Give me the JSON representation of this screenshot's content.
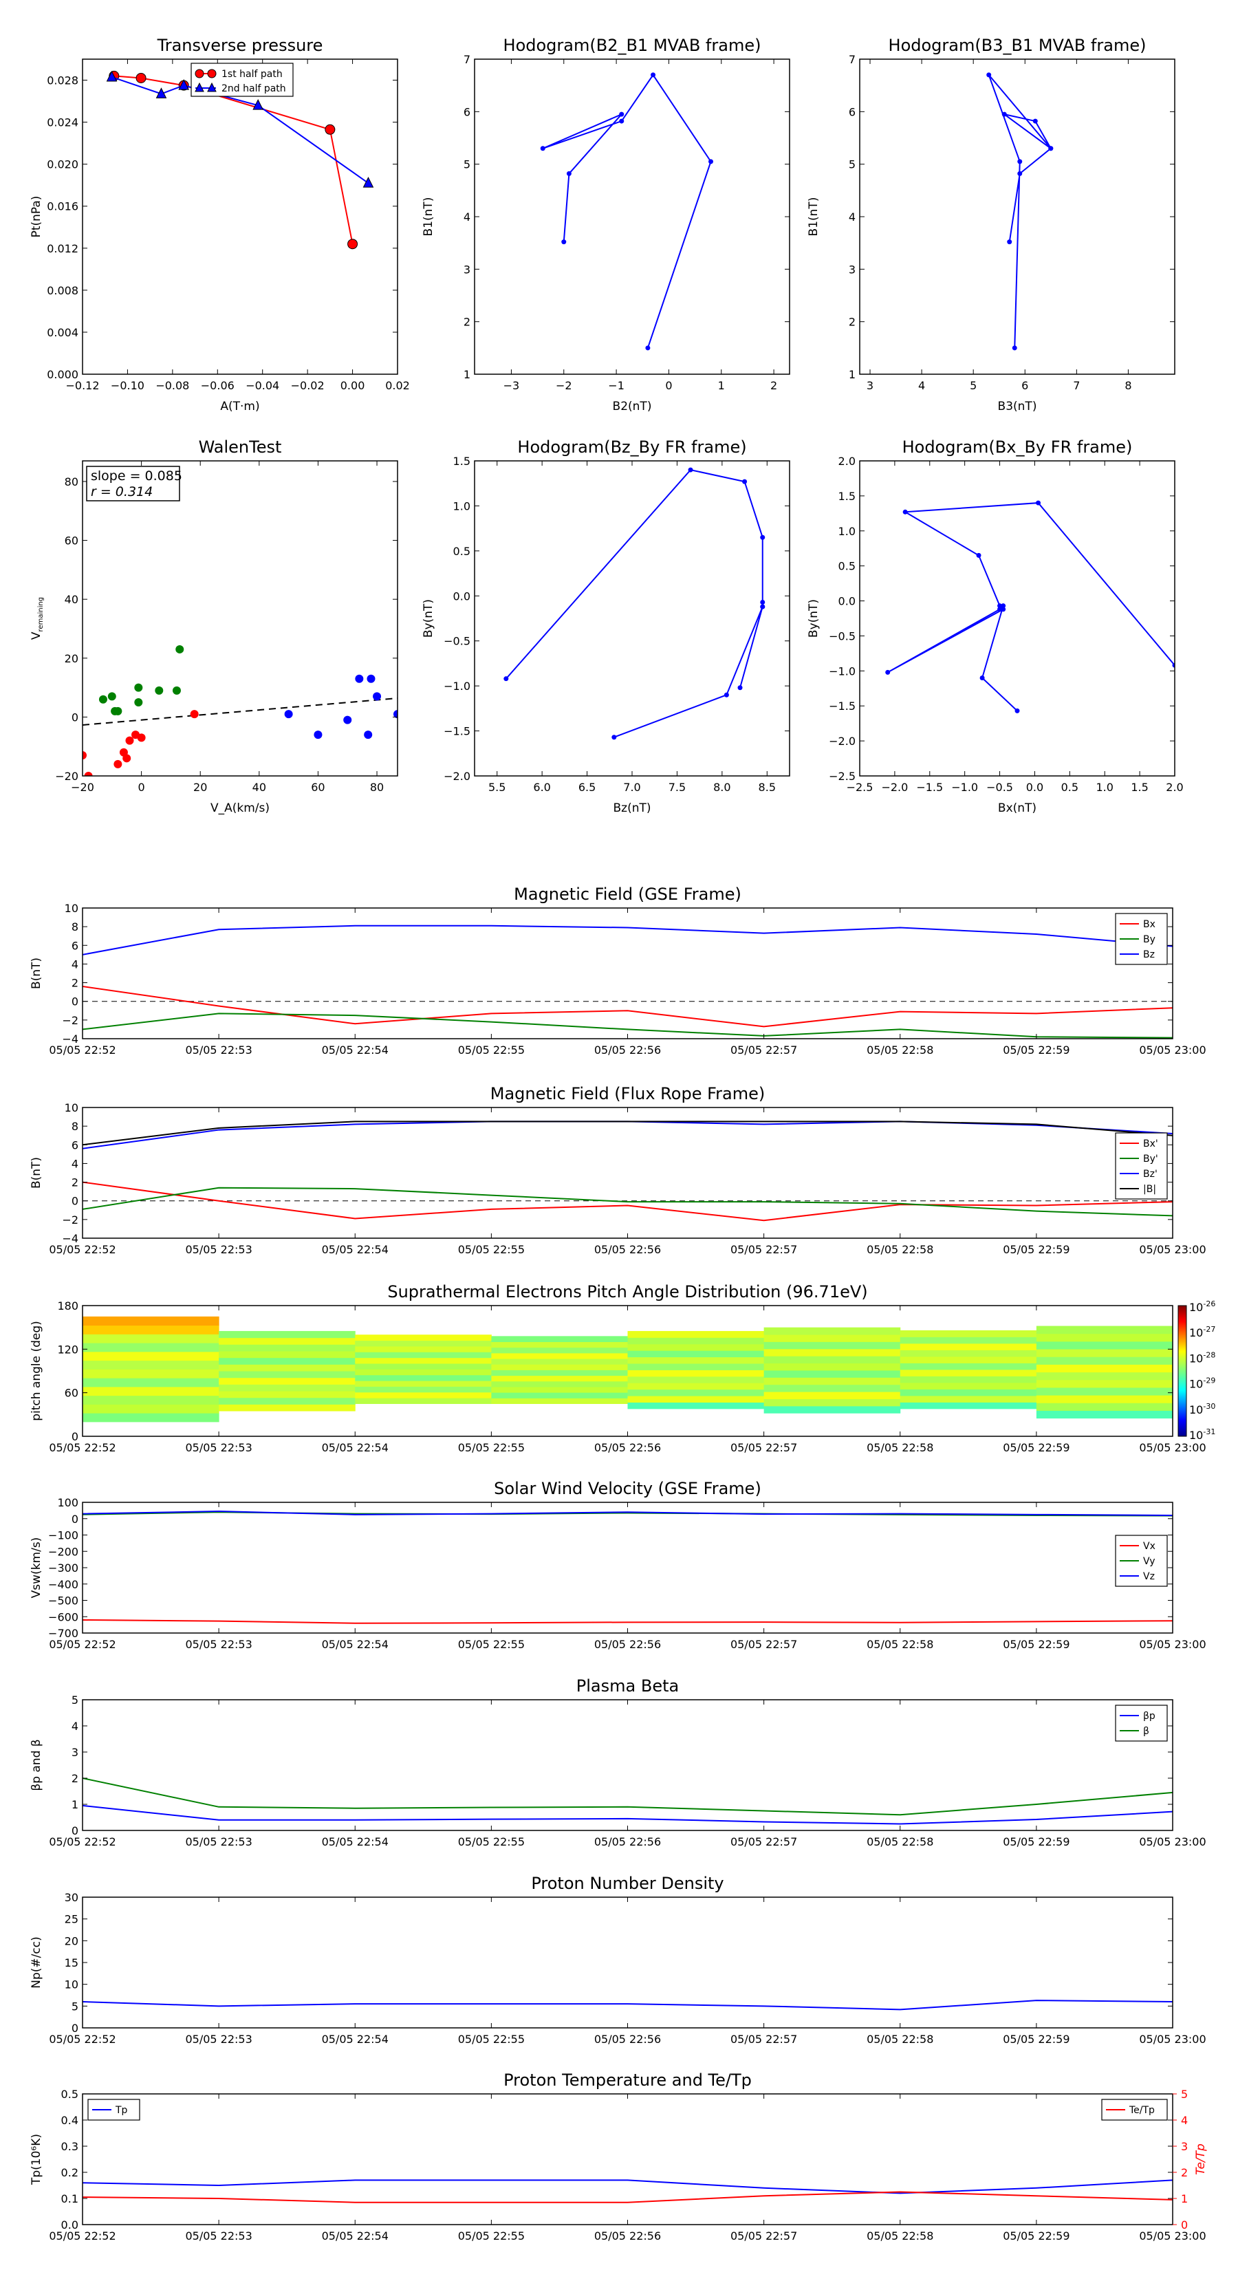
{
  "chart_data": [
    {
      "id": "transverse-pressure",
      "type": "line",
      "title": "Transverse pressure",
      "xlabel": "A(T·m)",
      "ylabel": "Pt(nPa)",
      "xlim": [
        -0.12,
        0.02
      ],
      "ylim": [
        0.0,
        0.03
      ],
      "xticks": [
        -0.12,
        -0.1,
        -0.08,
        -0.06,
        -0.04,
        -0.02,
        0.0,
        0.02
      ],
      "xtick_labels": [
        "−0.12",
        "−0.10",
        "−0.08",
        "−0.06",
        "−0.04",
        "−0.02",
        "0.00",
        "0.02"
      ],
      "yticks": [
        0.0,
        0.004,
        0.008,
        0.012,
        0.016,
        0.02,
        0.024,
        0.028
      ],
      "ytick_labels": [
        "0.000",
        "0.004",
        "0.008",
        "0.012",
        "0.016",
        "0.020",
        "0.024",
        "0.028"
      ],
      "legend": "top-center",
      "series": [
        {
          "name": "1st half path",
          "color": "#ff0000",
          "marker": "circle",
          "x": [
            -0.106,
            -0.094,
            -0.075,
            -0.01,
            0.0
          ],
          "y": [
            0.0284,
            0.0282,
            0.0275,
            0.0233,
            0.0124
          ]
        },
        {
          "name": "2nd half path",
          "color": "#0000ff",
          "marker": "triangle",
          "x": [
            -0.107,
            -0.085,
            -0.075,
            -0.042,
            0.007
          ],
          "y": [
            0.0283,
            0.0267,
            0.0275,
            0.0256,
            0.0182
          ]
        }
      ]
    },
    {
      "id": "hodogram-b2-b1",
      "type": "line",
      "title": "Hodogram(B2_B1 MVAB frame)",
      "xlabel": "B2(nT)",
      "ylabel": "B1(nT)",
      "xlim": [
        -3.7,
        2.3
      ],
      "ylim": [
        1,
        7
      ],
      "xticks": [
        -3,
        -2,
        -1,
        0,
        1,
        2
      ],
      "xtick_labels": [
        "−3",
        "−2",
        "−1",
        "0",
        "1",
        "2"
      ],
      "yticks": [
        1,
        2,
        3,
        4,
        5,
        6,
        7
      ],
      "ytick_labels": [
        "1",
        "2",
        "3",
        "4",
        "5",
        "6",
        "7"
      ],
      "series": [
        {
          "color": "#0000ff",
          "x": [
            -0.4,
            0.8,
            -0.3,
            -0.9,
            -2.4,
            -0.9,
            -1.9,
            -2.0
          ],
          "y": [
            1.5,
            5.05,
            6.7,
            5.82,
            5.3,
            5.95,
            4.82,
            3.52
          ]
        }
      ]
    },
    {
      "id": "hodogram-b3-b1",
      "type": "line",
      "title": "Hodogram(B3_B1 MVAB frame)",
      "xlabel": "B3(nT)",
      "ylabel": "B1(nT)",
      "xlim": [
        2.8,
        8.9
      ],
      "ylim": [
        1,
        7
      ],
      "xticks": [
        3,
        4,
        5,
        6,
        7,
        8
      ],
      "xtick_labels": [
        "3",
        "4",
        "5",
        "6",
        "7",
        "8"
      ],
      "yticks": [
        1,
        2,
        3,
        4,
        5,
        6,
        7
      ],
      "ytick_labels": [
        "1",
        "2",
        "3",
        "4",
        "5",
        "6",
        "7"
      ],
      "series": [
        {
          "color": "#0000ff",
          "x": [
            5.8,
            5.9,
            5.3,
            6.5,
            6.2,
            5.6,
            6.5,
            5.9,
            5.7
          ],
          "y": [
            1.5,
            5.05,
            6.7,
            5.3,
            5.82,
            5.95,
            5.3,
            4.82,
            3.52
          ]
        }
      ]
    },
    {
      "id": "walen-test",
      "type": "scatter",
      "title": "WalenTest",
      "xlabel": "V_A(km/s)",
      "ylabel": "V_remaining(km/s)",
      "xlim": [
        -20,
        87
      ],
      "ylim": [
        -20,
        87
      ],
      "xticks": [
        -20,
        0,
        20,
        40,
        60,
        80
      ],
      "xtick_labels": [
        "−20",
        "0",
        "20",
        "40",
        "60",
        "80"
      ],
      "yticks": [
        -20,
        0,
        20,
        40,
        60,
        80
      ],
      "ytick_labels": [
        "−20",
        "0",
        "20",
        "40",
        "60",
        "80"
      ],
      "annotation": [
        "slope = 0.085",
        "r = 0.314"
      ],
      "fit_line": {
        "slope": 0.085,
        "intercept": -1.0
      },
      "series": [
        {
          "color": "#ff0000",
          "x": [
            -20,
            -18,
            -8,
            -6,
            -5,
            -4,
            -2,
            0,
            18
          ],
          "y": [
            -13,
            -20,
            -16,
            -12,
            -14,
            -8,
            -6,
            -7,
            1
          ]
        },
        {
          "color": "#008000",
          "x": [
            -13,
            -10,
            -9,
            -8,
            -1,
            -1,
            6,
            12,
            13
          ],
          "y": [
            6,
            7,
            2,
            2,
            10,
            5,
            9,
            9,
            23
          ]
        },
        {
          "color": "#0000ff",
          "x": [
            50,
            60,
            70,
            74,
            77,
            78,
            80,
            87
          ],
          "y": [
            1,
            -6,
            -1,
            13,
            -6,
            13,
            7,
            1
          ]
        }
      ]
    },
    {
      "id": "hodogram-bz-by",
      "type": "line",
      "title": "Hodogram(Bz_By FR frame)",
      "xlabel": "Bz(nT)",
      "ylabel": "By(nT)",
      "xlim": [
        5.25,
        8.75
      ],
      "ylim": [
        -2.0,
        1.5
      ],
      "xticks": [
        5.5,
        6.0,
        6.5,
        7.0,
        7.5,
        8.0,
        8.5
      ],
      "xtick_labels": [
        "5.5",
        "6.0",
        "6.5",
        "7.0",
        "7.5",
        "8.0",
        "8.5"
      ],
      "yticks": [
        -2.0,
        -1.5,
        -1.0,
        -0.5,
        0.0,
        0.5,
        1.0,
        1.5
      ],
      "ytick_labels": [
        "−2.0",
        "−1.5",
        "−1.0",
        "−0.5",
        "0.0",
        "0.5",
        "1.0",
        "1.5"
      ],
      "series": [
        {
          "color": "#0000ff",
          "x": [
            5.6,
            7.65,
            8.25,
            8.45,
            8.45,
            8.45,
            8.2,
            8.45,
            8.05,
            6.8
          ],
          "y": [
            -0.92,
            1.4,
            1.27,
            0.65,
            -0.07,
            -0.12,
            -1.02,
            -0.12,
            -1.1,
            -1.57
          ]
        }
      ]
    },
    {
      "id": "hodogram-bx-by",
      "type": "line",
      "title": "Hodogram(Bx_By FR frame)",
      "xlabel": "Bx(nT)",
      "ylabel": "By(nT)",
      "xlim": [
        -2.5,
        2.0
      ],
      "ylim": [
        -2.5,
        2.0
      ],
      "xticks": [
        -2.5,
        -2.0,
        -1.5,
        -1.0,
        -0.5,
        0.0,
        0.5,
        1.0,
        1.5,
        2.0
      ],
      "xtick_labels": [
        "−2.5",
        "−2.0",
        "−1.5",
        "−1.0",
        "−0.5",
        "0.0",
        "0.5",
        "1.0",
        "1.5",
        "2.0"
      ],
      "yticks": [
        -2.5,
        -2.0,
        -1.5,
        -1.0,
        -0.5,
        0.0,
        0.5,
        1.0,
        1.5,
        2.0
      ],
      "ytick_labels": [
        "−2.5",
        "−2.0",
        "−1.5",
        "−1.0",
        "−0.5",
        "0.0",
        "0.5",
        "1.0",
        "1.5",
        "2.0"
      ],
      "series": [
        {
          "color": "#0000ff",
          "x": [
            2.0,
            0.05,
            -1.85,
            -0.8,
            -0.5,
            -0.45,
            -2.1,
            -0.5,
            -0.45,
            -0.75,
            -0.25
          ],
          "y": [
            -0.92,
            1.4,
            1.27,
            0.65,
            -0.07,
            -0.12,
            -1.02,
            -0.12,
            -0.07,
            -1.1,
            -1.57
          ]
        }
      ]
    },
    {
      "id": "mag-gse",
      "type": "line",
      "title": "Magnetic Field (GSE Frame)",
      "ylabel": "B(nT)",
      "ylim": [
        -4,
        10
      ],
      "yticks": [
        -4,
        -2,
        0,
        2,
        4,
        6,
        8,
        10
      ],
      "ytick_labels": [
        "−4",
        "−2",
        "0",
        "2",
        "4",
        "6",
        "8",
        "10"
      ],
      "xticks": [
        "05/05 22:52",
        "05/05 22:53",
        "05/05 22:54",
        "05/05 22:55",
        "05/05 22:56",
        "05/05 22:57",
        "05/05 22:58",
        "05/05 22:59",
        "05/05 23:00"
      ],
      "zero_line": true,
      "legend": "top-right",
      "x": [
        0,
        1,
        2,
        3,
        4,
        5,
        6,
        7,
        8
      ],
      "series": [
        {
          "name": "Bx",
          "color": "#ff0000",
          "values": [
            1.6,
            -0.5,
            -2.4,
            -1.3,
            -1.0,
            -2.7,
            -1.1,
            -1.3,
            -0.7
          ]
        },
        {
          "name": "By",
          "color": "#008000",
          "values": [
            -3.0,
            -1.3,
            -1.5,
            -2.2,
            -3.0,
            -3.7,
            -3.0,
            -3.8,
            -3.9
          ]
        },
        {
          "name": "Bz",
          "color": "#0000ff",
          "values": [
            5.0,
            7.7,
            8.1,
            8.1,
            7.9,
            7.3,
            7.9,
            7.2,
            5.9
          ]
        }
      ]
    },
    {
      "id": "mag-fr",
      "type": "line",
      "title": "Magnetic Field (Flux Rope Frame)",
      "ylabel": "B(nT)",
      "ylim": [
        -4,
        10
      ],
      "yticks": [
        -4,
        -2,
        0,
        2,
        4,
        6,
        8,
        10
      ],
      "ytick_labels": [
        "−4",
        "−2",
        "0",
        "2",
        "4",
        "6",
        "8",
        "10"
      ],
      "xticks": [
        "05/05 22:52",
        "05/05 22:53",
        "05/05 22:54",
        "05/05 22:55",
        "05/05 22:56",
        "05/05 22:57",
        "05/05 22:58",
        "05/05 22:59",
        "05/05 23:00"
      ],
      "zero_line": true,
      "legend": "right",
      "x": [
        0,
        1,
        2,
        3,
        4,
        5,
        6,
        7,
        8
      ],
      "series": [
        {
          "name": "Bx'",
          "color": "#ff0000",
          "values": [
            2.0,
            0.0,
            -1.9,
            -0.9,
            -0.5,
            -2.1,
            -0.4,
            -0.5,
            -0.1
          ]
        },
        {
          "name": "By'",
          "color": "#008000",
          "values": [
            -0.9,
            1.4,
            1.3,
            0.6,
            -0.1,
            -0.1,
            -0.3,
            -1.1,
            -1.6
          ]
        },
        {
          "name": "Bz'",
          "color": "#0000ff",
          "values": [
            5.6,
            7.6,
            8.2,
            8.5,
            8.5,
            8.2,
            8.5,
            8.1,
            7.2
          ]
        },
        {
          "name": "|B|",
          "color": "#000000",
          "values": [
            6.0,
            7.8,
            8.5,
            8.5,
            8.5,
            8.5,
            8.5,
            8.2,
            7.0
          ]
        }
      ]
    },
    {
      "id": "pad",
      "type": "heatmap",
      "title": "Suprathermal Electrons Pitch Angle Distribution (96.71eV)",
      "ylabel": "pitch angle (deg)",
      "ylim": [
        0,
        180
      ],
      "yticks": [
        0,
        60,
        120,
        180
      ],
      "ytick_labels": [
        "0",
        "60",
        "120",
        "180"
      ],
      "xticks": [
        "05/05 22:52",
        "05/05 22:53",
        "05/05 22:54",
        "05/05 22:55",
        "05/05 22:56",
        "05/05 22:57",
        "05/05 22:58",
        "05/05 22:59",
        "05/05 23:00"
      ],
      "colorbar_exponents": [
        "-26",
        "-27",
        "-28",
        "-29",
        "-30",
        "-31"
      ],
      "colorbar_base": "10",
      "columns": [
        {
          "t": [
            0,
            1
          ],
          "ymin": 20,
          "ymax": 165
        },
        {
          "t": [
            1,
            2
          ],
          "ymin": 35,
          "ymax": 145
        },
        {
          "t": [
            2,
            3
          ],
          "ymin": 45,
          "ymax": 140
        },
        {
          "t": [
            3,
            4
          ],
          "ymin": 45,
          "ymax": 138
        },
        {
          "t": [
            4,
            5
          ],
          "ymin": 38,
          "ymax": 145
        },
        {
          "t": [
            5,
            6
          ],
          "ymin": 32,
          "ymax": 150
        },
        {
          "t": [
            6,
            7
          ],
          "ymin": 38,
          "ymax": 146
        },
        {
          "t": [
            7,
            8
          ],
          "ymin": 25,
          "ymax": 152
        }
      ]
    },
    {
      "id": "vsw",
      "type": "line",
      "title": "Solar Wind Velocity (GSE Frame)",
      "ylabel": "Vsw(km/s)",
      "ylim": [
        -700,
        100
      ],
      "yticks": [
        -700,
        -600,
        -500,
        -400,
        -300,
        -200,
        -100,
        0,
        100
      ],
      "ytick_labels": [
        "−700",
        "−600",
        "−500",
        "−400",
        "−300",
        "−200",
        "−100",
        "0",
        "100"
      ],
      "xticks": [
        "05/05 22:52",
        "05/05 22:53",
        "05/05 22:54",
        "05/05 22:55",
        "05/05 22:56",
        "05/05 22:57",
        "05/05 22:58",
        "05/05 22:59",
        "05/05 23:00"
      ],
      "legend": "right",
      "x": [
        0,
        1,
        2,
        3,
        4,
        5,
        6,
        7,
        8
      ],
      "series": [
        {
          "name": "Vx",
          "color": "#ff0000",
          "values": [
            -620,
            -627,
            -640,
            -638,
            -634,
            -633,
            -636,
            -630,
            -625
          ]
        },
        {
          "name": "Vy",
          "color": "#008000",
          "values": [
            25,
            40,
            30,
            28,
            35,
            30,
            25,
            20,
            18
          ]
        },
        {
          "name": "Vz",
          "color": "#0000ff",
          "values": [
            30,
            45,
            25,
            30,
            40,
            28,
            30,
            25,
            20
          ]
        }
      ]
    },
    {
      "id": "beta",
      "type": "line",
      "title": "Plasma Beta",
      "ylabel": "βp and β",
      "ylim": [
        0,
        5
      ],
      "yticks": [
        0,
        1,
        2,
        3,
        4,
        5
      ],
      "ytick_labels": [
        "0",
        "1",
        "2",
        "3",
        "4",
        "5"
      ],
      "xticks": [
        "05/05 22:52",
        "05/05 22:53",
        "05/05 22:54",
        "05/05 22:55",
        "05/05 22:56",
        "05/05 22:57",
        "05/05 22:58",
        "05/05 22:59",
        "05/05 23:00"
      ],
      "legend": "top-right",
      "x": [
        0,
        1,
        2,
        3,
        4,
        5,
        6,
        7,
        8
      ],
      "series": [
        {
          "name": "βp",
          "color": "#0000ff",
          "values": [
            0.95,
            0.4,
            0.4,
            0.43,
            0.45,
            0.33,
            0.25,
            0.42,
            0.72
          ]
        },
        {
          "name": "β",
          "color": "#008000",
          "values": [
            2.0,
            0.9,
            0.85,
            0.88,
            0.9,
            0.75,
            0.6,
            1.0,
            1.45
          ]
        }
      ]
    },
    {
      "id": "density",
      "type": "line",
      "title": "Proton Number Density",
      "ylabel": "Np(#/cc)",
      "ylim": [
        0,
        30
      ],
      "yticks": [
        0,
        5,
        10,
        15,
        20,
        25,
        30
      ],
      "ytick_labels": [
        "0",
        "5",
        "10",
        "15",
        "20",
        "25",
        "30"
      ],
      "xticks": [
        "05/05 22:52",
        "05/05 22:53",
        "05/05 22:54",
        "05/05 22:55",
        "05/05 22:56",
        "05/05 22:57",
        "05/05 22:58",
        "05/05 22:59",
        "05/05 23:00"
      ],
      "x": [
        0,
        1,
        2,
        3,
        4,
        5,
        6,
        7,
        8
      ],
      "series": [
        {
          "color": "#0000ff",
          "values": [
            6.0,
            5.0,
            5.5,
            5.5,
            5.5,
            5.0,
            4.2,
            6.3,
            6.0
          ]
        }
      ]
    },
    {
      "id": "temperature",
      "type": "line",
      "title": "Proton Temperature and Te/Tp",
      "ylabel": "Tp(10⁶K)",
      "ylim": [
        0,
        0.5
      ],
      "yticks": [
        0,
        0.1,
        0.2,
        0.3,
        0.4,
        0.5
      ],
      "ytick_labels": [
        "0.0",
        "0.1",
        "0.2",
        "0.3",
        "0.4",
        "0.5"
      ],
      "y2label": "Te/Tp",
      "y2lim": [
        0,
        5
      ],
      "y2ticks": [
        0,
        1,
        2,
        3,
        4,
        5
      ],
      "y2tick_labels": [
        "0",
        "1",
        "2",
        "3",
        "4",
        "5"
      ],
      "xticks": [
        "05/05 22:52",
        "05/05 22:53",
        "05/05 22:54",
        "05/05 22:55",
        "05/05 22:56",
        "05/05 22:57",
        "05/05 22:58",
        "05/05 22:59",
        "05/05 23:00"
      ],
      "x": [
        0,
        1,
        2,
        3,
        4,
        5,
        6,
        7,
        8
      ],
      "series": [
        {
          "name": "Tp",
          "color": "#0000ff",
          "axis": "left",
          "legend": "top-left",
          "values": [
            0.16,
            0.15,
            0.17,
            0.17,
            0.17,
            0.14,
            0.12,
            0.14,
            0.17
          ]
        },
        {
          "name": "Te/Tp",
          "color": "#ff0000",
          "axis": "right",
          "legend": "top-right",
          "values": [
            1.05,
            1.0,
            0.85,
            0.85,
            0.85,
            1.1,
            1.25,
            1.1,
            0.95
          ]
        }
      ]
    }
  ]
}
